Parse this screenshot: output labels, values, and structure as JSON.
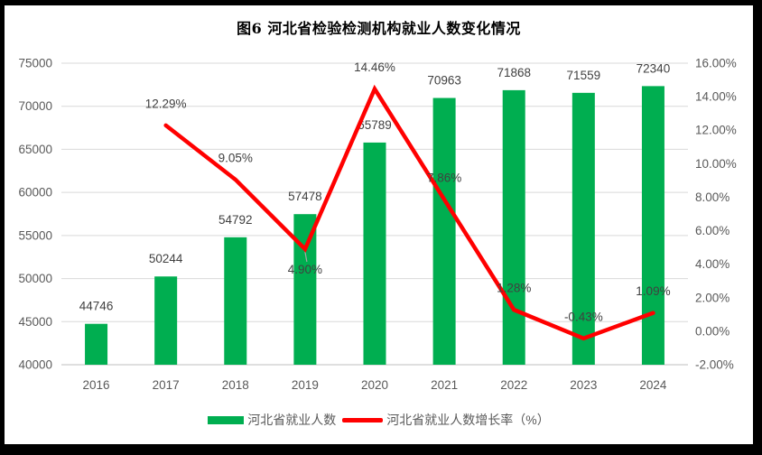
{
  "frame": {
    "border_color": "#000000",
    "panel_color": "#FFFFFF"
  },
  "chart_data": {
    "type": "bar",
    "subtype": "combo-bar-line",
    "title": "图6 河北省检验检测机构就业人数变化情况",
    "categories": [
      "2016",
      "2017",
      "2018",
      "2019",
      "2020",
      "2021",
      "2022",
      "2023",
      "2024"
    ],
    "series": [
      {
        "name": "河北省就业人数",
        "type": "bar",
        "axis": "left",
        "color": "#00AE50",
        "values": [
          44746,
          50244,
          54792,
          57478,
          65789,
          70963,
          71868,
          71559,
          72340
        ],
        "labels": [
          "44746",
          "50244",
          "54792",
          "57478",
          "65789",
          "70963",
          "71868",
          "71559",
          "72340"
        ]
      },
      {
        "name": "河北省就业人数增长率（%）",
        "type": "line",
        "axis": "right",
        "color": "#FF0000",
        "values": [
          null,
          12.29,
          9.05,
          4.9,
          14.46,
          7.86,
          1.28,
          -0.43,
          1.09
        ],
        "labels": [
          null,
          "12.29%",
          "9.05%",
          "4.90%",
          "14.46%",
          "7.86%",
          "1.28%",
          "-0.43%",
          "1.09%"
        ],
        "label_positions": [
          null,
          "above",
          "above",
          "below",
          "above",
          "above",
          "above",
          "above",
          "above"
        ]
      }
    ],
    "left_axis": {
      "min": 40000,
      "max": 75000,
      "step": 5000,
      "tick_labels": [
        "75000",
        "70000",
        "65000",
        "60000",
        "55000",
        "50000",
        "45000",
        "40000"
      ]
    },
    "right_axis": {
      "min": -2,
      "max": 16,
      "step": 2,
      "tick_labels": [
        "16.00%",
        "14.00%",
        "12.00%",
        "10.00%",
        "8.00%",
        "6.00%",
        "4.00%",
        "2.00%",
        "0.00%",
        "-2.00%"
      ]
    },
    "grid": {
      "horizontal": true,
      "color": "#D9D9D9",
      "axis_line_color": "#BFBFBF"
    },
    "legend": {
      "position": "bottom",
      "items": [
        {
          "label": "河北省就业人数",
          "color": "#00AE50",
          "marker": "rect"
        },
        {
          "label": "河北省就业人数增长率（%）",
          "color": "#FF0000",
          "marker": "line"
        }
      ]
    },
    "text_colors": {
      "axis": "#595959",
      "data_label": "#404040",
      "title": "#000000"
    },
    "leader_line_color": "#A6A6A6"
  }
}
